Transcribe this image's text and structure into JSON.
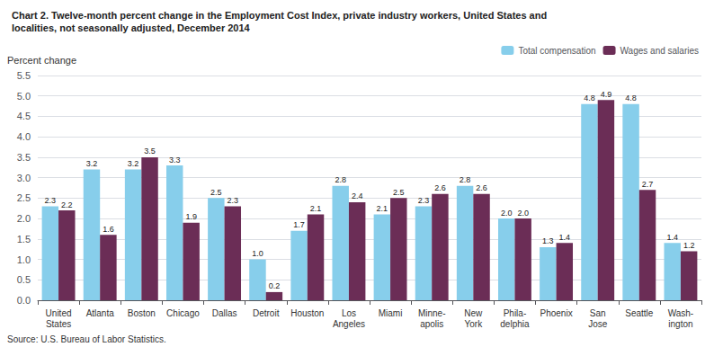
{
  "chart_data": {
    "type": "bar",
    "title": "Chart 2. Twelve-month percent change in the Employment Cost Index, private industry workers, United States and\nlocalities, not seasonally adjusted, December 2014",
    "ylabel": "Percent change",
    "annotations": [
      "Source: U.S. Bureau of Labor Statistics."
    ],
    "categories": [
      "United\nStates",
      "Atlanta",
      "Boston",
      "Chicago",
      "Dallas",
      "Detroit",
      "Houston",
      "Los\nAngeles",
      "Miami",
      "Minne-\napolis",
      "New\nYork",
      "Phila-\ndelphia",
      "Phoenix",
      "San\nJose",
      "Seattle",
      "Wash-\nington"
    ],
    "series": [
      {
        "name": "Total compensation",
        "color": "#87CEEB",
        "values": [
          2.3,
          3.2,
          3.2,
          3.3,
          2.5,
          1.0,
          1.7,
          2.8,
          2.1,
          2.3,
          2.8,
          2.0,
          1.3,
          4.8,
          4.8,
          1.4
        ],
        "value_labels": [
          "2.3",
          "3.2",
          "3.2",
          "3.3",
          "2.5",
          "1.0",
          "1.7",
          "2.8",
          "2.1",
          "2.3",
          "2.8",
          "2.0",
          "1.3",
          "4.8",
          "4.8",
          "1.4"
        ]
      },
      {
        "name": "Wages and salaries",
        "color": "#6B2D56",
        "values": [
          2.2,
          1.6,
          3.5,
          1.9,
          2.3,
          0.2,
          2.1,
          2.4,
          2.5,
          2.6,
          2.6,
          2.0,
          1.4,
          4.9,
          2.7,
          1.2
        ],
        "value_labels": [
          "2.2",
          "1.6",
          "3.5",
          "1.9",
          "2.3",
          "0.2",
          "2.1",
          "2.4",
          "2.5",
          "2.6",
          "2.6",
          "2.0",
          "1.4",
          "4.9",
          "2.7",
          "1.2"
        ]
      }
    ],
    "ylim": [
      0,
      5.5
    ],
    "yticks": [
      {
        "value": 0,
        "label": "0.0"
      },
      0.5,
      {
        "value": 1,
        "label": "1.0"
      },
      1.5,
      {
        "value": 2,
        "label": "2.0"
      },
      2.5,
      {
        "value": 3,
        "label": "3.0"
      },
      3.5,
      {
        "value": 4,
        "label": "4.0"
      },
      4.5,
      {
        "value": 5,
        "label": "5.0"
      },
      5.5
    ],
    "grid": true,
    "legend": "upper right",
    "data_labels": true
  }
}
